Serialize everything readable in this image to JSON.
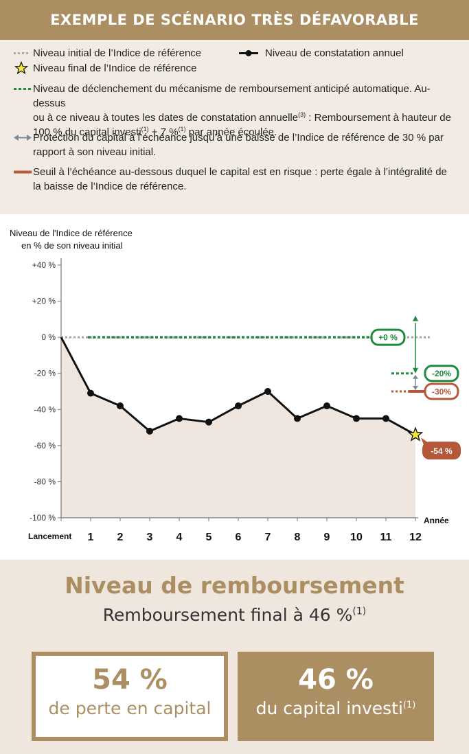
{
  "header": {
    "title": "EXEMPLE DE SCÉNARIO TRÈS DÉFAVORABLE"
  },
  "legend": {
    "initial_level": "Niveau initial de l’Indice de référence",
    "annual_level": "Niveau de constatation annuel",
    "final_level": "Niveau final de l’Indice de référence",
    "trigger_line1": "Niveau de déclenchement du mécanisme de remboursement anticipé automatique. Au-dessus",
    "trigger_line2a": "ou à ce niveau à toutes les dates de constatation annuelle",
    "trigger_sup1": "(3)",
    "trigger_line2b": " : Remboursement à hauteur de",
    "trigger_line3a": "100 % du capital investi",
    "trigger_sup2": "(1)",
    "trigger_line3b": " + 7 %",
    "trigger_sup3": "(1)",
    "trigger_line3c": " par année écoulée.",
    "protection_line1": "Protection du capital à l’échéance jusqu’à une baisse de l’Indice de référence de 30 % par",
    "protection_line2": "rapport à son niveau initial.",
    "threshold_line1": "Seuil à l’échéance au-dessous duquel le capital est en risque : perte égale à l’intégralité de",
    "threshold_line2": "la baisse de l’Indice de référence.",
    "colors": {
      "initial": "#a6a6a6",
      "trigger": "#1e8a3c",
      "protection": "#7d8a96",
      "threshold": "#b5583a",
      "accent": "#ab8f63"
    }
  },
  "chart_data": {
    "type": "line",
    "ylabel_line1": "Niveau de l'Indice de référence",
    "ylabel_line2": "en % de son niveau initial",
    "xlabel": "Année",
    "y_ticks": [
      "+40 %",
      "+20 %",
      "0 %",
      "-20 %",
      "-40 %",
      "-60 %",
      "-80 %",
      "-100 %"
    ],
    "y_tick_values": [
      40,
      20,
      0,
      -20,
      -40,
      -60,
      -80,
      -100
    ],
    "ylim": [
      -100,
      40
    ],
    "x_ticks": [
      "Lancement",
      "1",
      "2",
      "3",
      "4",
      "5",
      "6",
      "7",
      "8",
      "9",
      "10",
      "11",
      "12"
    ],
    "x": [
      0,
      1,
      2,
      3,
      4,
      5,
      6,
      7,
      8,
      9,
      10,
      11,
      12
    ],
    "series": [
      {
        "values": [
          0,
          -31,
          -38,
          -52,
          -45,
          -47,
          -38,
          -30,
          -45,
          -38,
          -45,
          -45,
          -54
        ]
      }
    ],
    "initial_level": 0,
    "trigger_level": 0,
    "protection_level": -30,
    "final_level": -54,
    "labels": {
      "trigger": "+0 %",
      "minus20": "-20%",
      "minus30": "-30%",
      "final": "-54 %"
    }
  },
  "result": {
    "title": "Niveau de remboursement",
    "subtitle": "Remboursement final à 46 %",
    "subtitle_sup": "(1)",
    "loss_value": "54 %",
    "loss_text": "de perte en capital",
    "capital_value": "46 %",
    "capital_text": "du capital investi",
    "capital_sup": "(1)"
  }
}
